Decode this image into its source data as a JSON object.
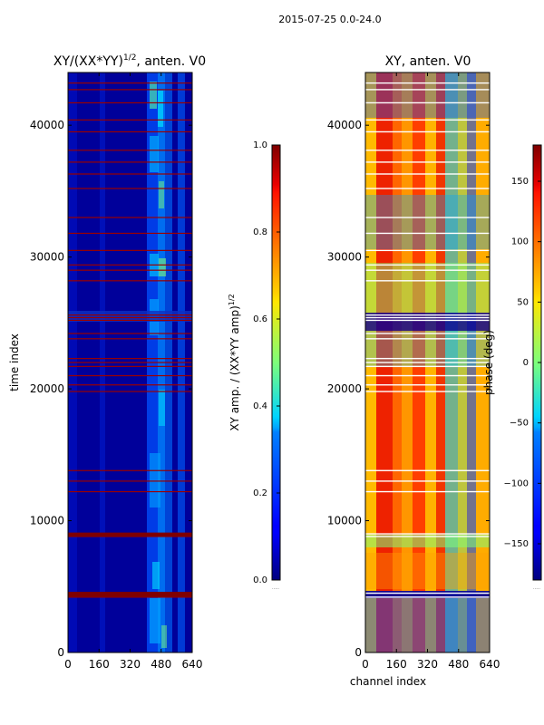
{
  "figure_title": "2015-07-25 0.0-24.0",
  "chart_data": [
    {
      "type": "heatmap",
      "title": "XY/(XX*YY)$^{1/2}$, anten. V0",
      "title_main": "XY/(XX*YY)",
      "title_sup": "1/2",
      "title_tail": ", anten. V0",
      "xlabel": "",
      "ylabel": "time index",
      "xlim": [
        0,
        640
      ],
      "ylim": [
        0,
        44000
      ],
      "xticks": [
        "0",
        "160",
        "320",
        "480",
        "640"
      ],
      "yticks": [
        "0",
        "10000",
        "20000",
        "30000",
        "40000"
      ],
      "ytick_values": [
        0,
        10000,
        20000,
        30000,
        40000
      ],
      "colormap": "jet",
      "colorbar": {
        "label": "XY amp. / (XX*YY amp)$^{1/2}$",
        "label_main": "XY amp. / (XX*YY amp)",
        "label_sup": "1/2",
        "range": [
          0.0,
          1.0
        ],
        "ticks": [
          "0.0",
          "0.2",
          "0.4",
          "0.6",
          "0.8",
          "1.0"
        ],
        "tick_values": [
          0.0,
          0.2,
          0.4,
          0.6,
          0.8,
          1.0
        ],
        "offset_label": "....."
      },
      "flagged_rows": [
        4200,
        4500,
        8800,
        9000,
        12200,
        13000,
        13800,
        19800,
        20300,
        21000,
        21700,
        22000,
        22300,
        23800,
        24200,
        25200,
        25400,
        25600,
        28200,
        29000,
        29400,
        30500,
        31800,
        33000,
        35200,
        36300,
        37200,
        38100,
        39500,
        40400,
        41700,
        42700,
        43200
      ]
    },
    {
      "type": "heatmap",
      "title": "XY, anten. V0",
      "xlabel": "channel index",
      "ylabel": "",
      "xlim": [
        0,
        640
      ],
      "ylim": [
        0,
        44000
      ],
      "xticks": [
        "0",
        "160",
        "320",
        "480",
        "640"
      ],
      "yticks": [
        "0",
        "10000",
        "20000",
        "30000",
        "40000"
      ],
      "ytick_values": [
        0,
        10000,
        20000,
        30000,
        40000
      ],
      "colormap": "jet",
      "colorbar": {
        "label": "phase (deg)",
        "range": [
          -180,
          180
        ],
        "ticks": [
          "−150",
          "−100",
          "−50",
          "0",
          "50",
          "100",
          "150"
        ],
        "tick_values": [
          -150,
          -100,
          -50,
          0,
          50,
          100,
          150
        ],
        "offset_label": "....."
      }
    }
  ]
}
